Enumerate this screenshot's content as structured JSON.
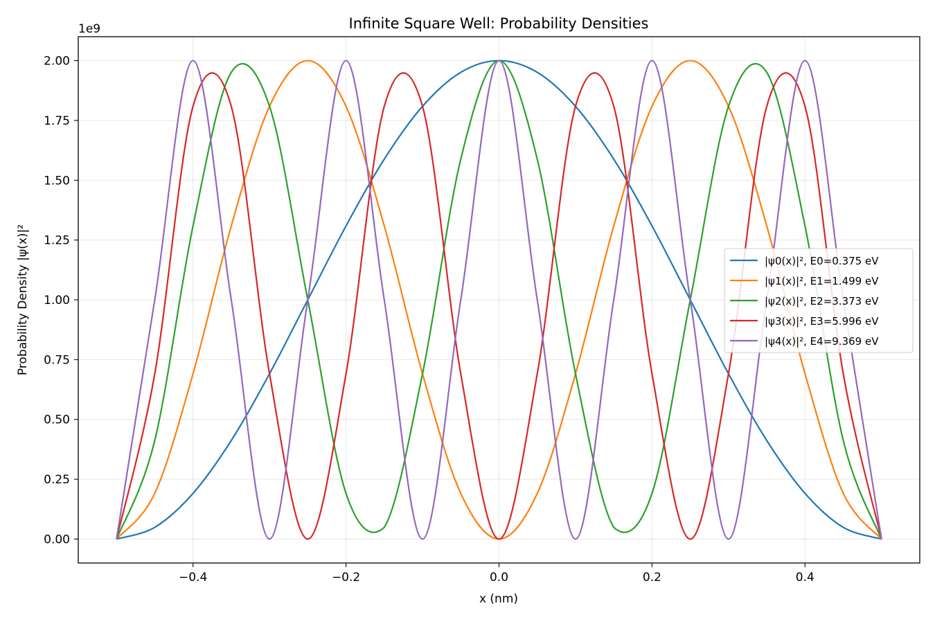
{
  "chart_data": {
    "type": "line",
    "title": "Infinite Square Well: Probability Densities",
    "xlabel": "x (nm)",
    "ylabel": "Probability Density |ψ(x)|²",
    "y_offset_text": "1e9",
    "xlim": [
      -0.55,
      0.55
    ],
    "ylim": [
      -0.1,
      2.1
    ],
    "x_ticks": [
      -0.4,
      -0.2,
      0.0,
      0.2,
      0.4
    ],
    "x_tick_labels": [
      "−0.4",
      "−0.2",
      "0.0",
      "0.2",
      "0.4"
    ],
    "y_ticks": [
      0.0,
      0.25,
      0.5,
      0.75,
      1.0,
      1.25,
      1.5,
      1.75,
      2.0
    ],
    "y_tick_labels": [
      "0.00",
      "0.25",
      "0.50",
      "0.75",
      "1.00",
      "1.25",
      "1.50",
      "1.75",
      "2.00"
    ],
    "grid": true,
    "legend_position": "center-right",
    "series": [
      {
        "name": "|ψ0(x)|², E0=0.375 eV",
        "color": "#1f77b4",
        "x": [
          -0.5,
          -0.45,
          -0.4,
          -0.35,
          -0.3,
          -0.25,
          -0.2,
          -0.15,
          -0.1,
          -0.05,
          0.0,
          0.05,
          0.1,
          0.15,
          0.2,
          0.25,
          0.3,
          0.35,
          0.4,
          0.45,
          0.5
        ],
        "y": [
          0.0,
          0.049,
          0.191,
          0.412,
          0.691,
          1.0,
          1.309,
          1.588,
          1.809,
          1.951,
          2.0,
          1.951,
          1.809,
          1.588,
          1.309,
          1.0,
          0.691,
          0.412,
          0.191,
          0.049,
          0.0
        ]
      },
      {
        "name": "|ψ1(x)|², E1=1.499 eV",
        "color": "#ff7f0e",
        "x": [
          -0.5,
          -0.45,
          -0.4,
          -0.35,
          -0.3,
          -0.25,
          -0.2,
          -0.15,
          -0.1,
          -0.05,
          0.0,
          0.05,
          0.1,
          0.15,
          0.2,
          0.25,
          0.3,
          0.35,
          0.4,
          0.45,
          0.5
        ],
        "y": [
          0.0,
          0.191,
          0.691,
          1.309,
          1.809,
          2.0,
          1.809,
          1.309,
          0.691,
          0.191,
          0.0,
          0.191,
          0.691,
          1.309,
          1.809,
          2.0,
          1.809,
          1.309,
          0.691,
          0.191,
          0.0
        ]
      },
      {
        "name": "|ψ2(x)|², E2=3.373 eV",
        "color": "#2ca02c",
        "x": [
          -0.5,
          -0.45,
          -0.4,
          -0.35,
          -0.3,
          -0.25,
          -0.2,
          -0.15,
          -0.1,
          -0.05,
          0.0,
          0.05,
          0.1,
          0.15,
          0.2,
          0.25,
          0.3,
          0.35,
          0.4,
          0.45,
          0.5
        ],
        "y": [
          0.0,
          0.412,
          1.309,
          1.951,
          1.809,
          1.0,
          0.191,
          0.049,
          0.691,
          1.588,
          2.0,
          1.588,
          0.691,
          0.049,
          0.191,
          1.0,
          1.809,
          1.951,
          1.309,
          0.412,
          0.0
        ]
      },
      {
        "name": "|ψ3(x)|², E3=5.996 eV",
        "color": "#d62728",
        "x": [
          -0.5,
          -0.45,
          -0.4,
          -0.35,
          -0.3,
          -0.25,
          -0.2,
          -0.15,
          -0.1,
          -0.05,
          0.0,
          0.05,
          0.1,
          0.15,
          0.2,
          0.25,
          0.3,
          0.35,
          0.4,
          0.45,
          0.5
        ],
        "y": [
          0.0,
          0.691,
          1.809,
          1.809,
          0.691,
          0.0,
          0.691,
          1.809,
          1.809,
          0.691,
          0.0,
          0.691,
          1.809,
          1.809,
          0.691,
          0.0,
          0.691,
          1.809,
          1.809,
          0.691,
          0.0
        ]
      },
      {
        "name": "|ψ4(x)|², E4=9.369 eV",
        "color": "#9467bd",
        "x": [
          -0.5,
          -0.45,
          -0.4,
          -0.35,
          -0.3,
          -0.25,
          -0.2,
          -0.15,
          -0.1,
          -0.05,
          0.0,
          0.05,
          0.1,
          0.15,
          0.2,
          0.25,
          0.3,
          0.35,
          0.4,
          0.45,
          0.5
        ],
        "y": [
          0.0,
          1.0,
          2.0,
          1.0,
          0.0,
          1.0,
          2.0,
          1.0,
          0.0,
          1.0,
          2.0,
          1.0,
          0.0,
          1.0,
          2.0,
          1.0,
          0.0,
          1.0,
          2.0,
          1.0,
          0.0
        ]
      }
    ]
  }
}
